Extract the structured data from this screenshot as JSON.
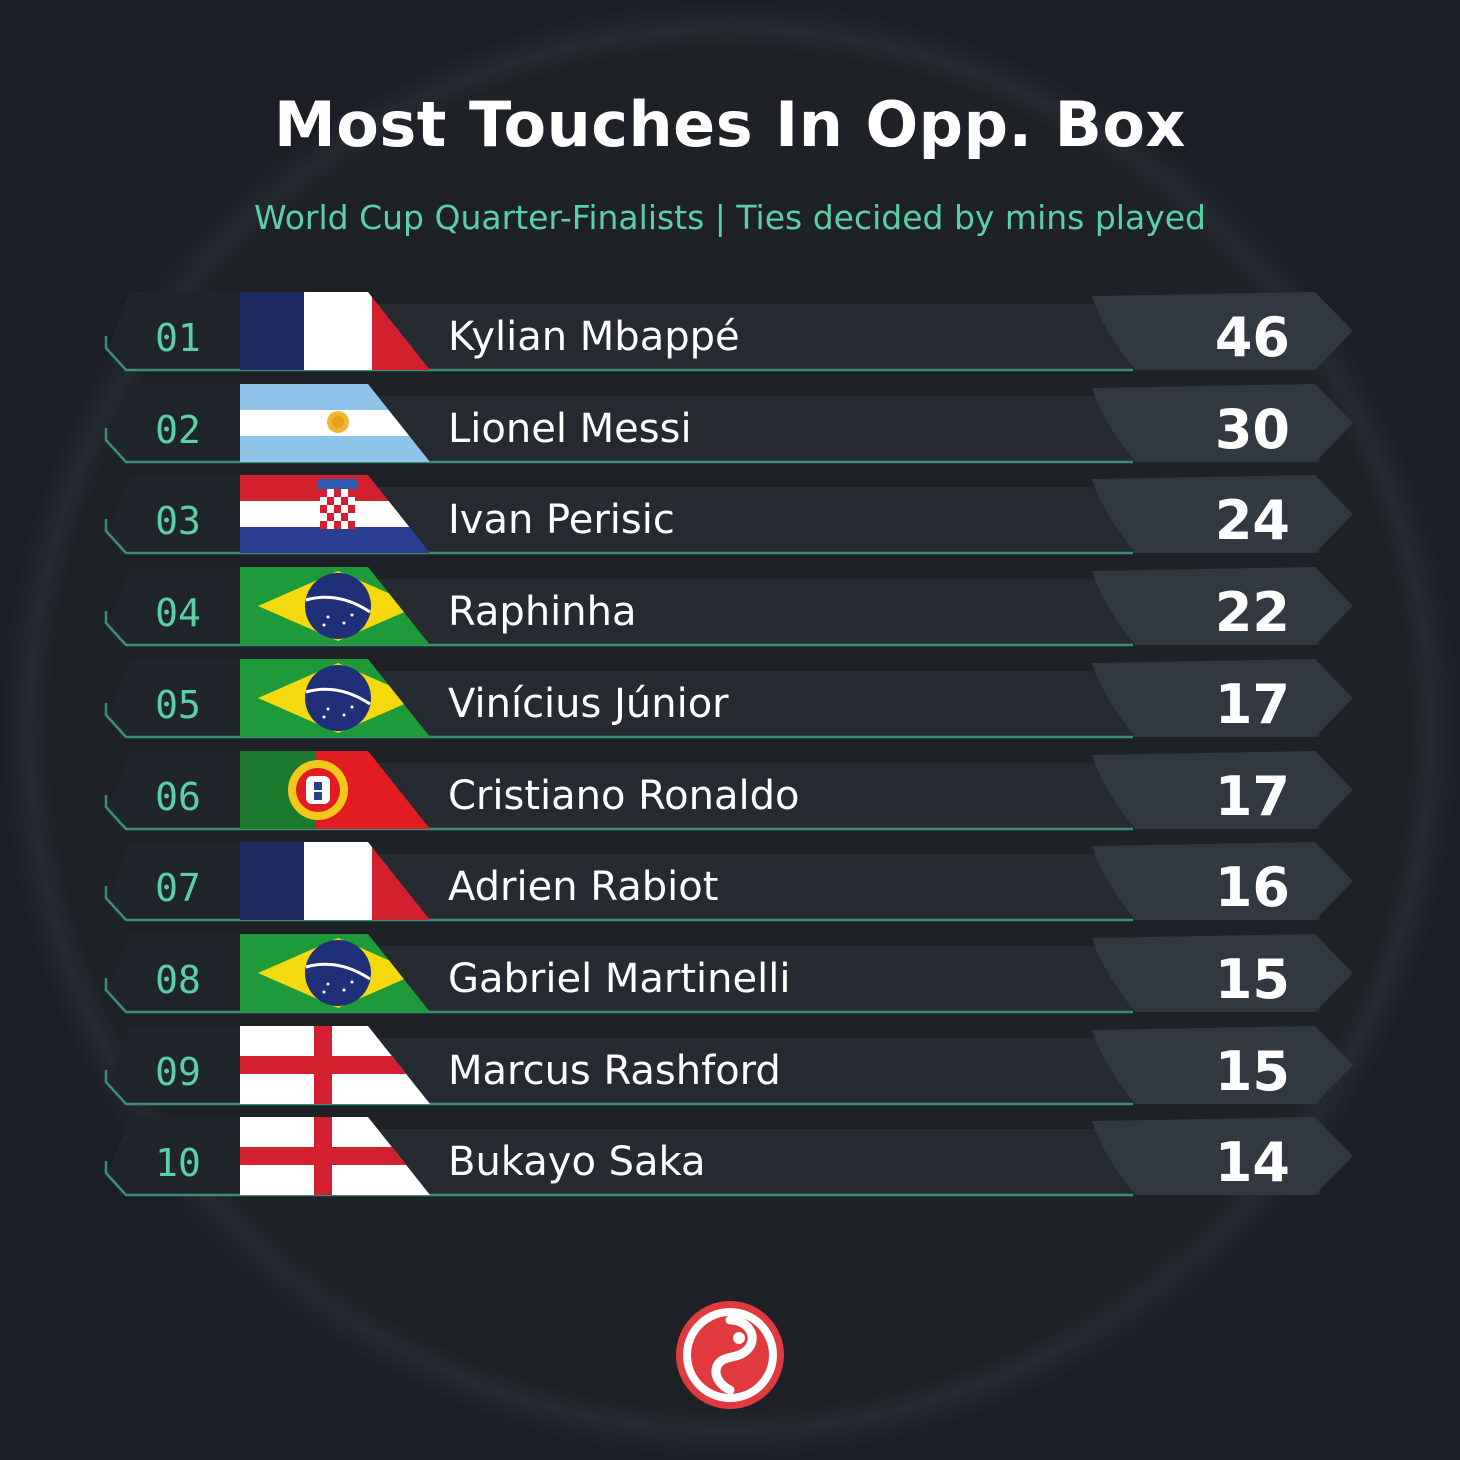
{
  "title": "Most Touches In Opp. Box",
  "subtitle": "World Cup Quarter-Finalists | Ties decided by mins played",
  "chart_data": {
    "type": "table",
    "columns": [
      "rank",
      "flag",
      "player",
      "touches"
    ],
    "rows": [
      {
        "rank": "01",
        "flag": "france-flag",
        "player": "Kylian Mbappé",
        "value": "46"
      },
      {
        "rank": "02",
        "flag": "argentina-flag",
        "player": "Lionel Messi",
        "value": "30"
      },
      {
        "rank": "03",
        "flag": "croatia-flag",
        "player": "Ivan Perisic",
        "value": "24"
      },
      {
        "rank": "04",
        "flag": "brazil-flag",
        "player": "Raphinha",
        "value": "22"
      },
      {
        "rank": "05",
        "flag": "brazil-flag",
        "player": "Vinícius Júnior",
        "value": "17"
      },
      {
        "rank": "06",
        "flag": "portugal-flag",
        "player": "Cristiano Ronaldo",
        "value": "17"
      },
      {
        "rank": "07",
        "flag": "france-flag",
        "player": "Adrien Rabiot",
        "value": "16"
      },
      {
        "rank": "08",
        "flag": "brazil-flag",
        "player": "Gabriel Martinelli",
        "value": "15"
      },
      {
        "rank": "09",
        "flag": "england-flag",
        "player": "Marcus Rashford",
        "value": "15"
      },
      {
        "rank": "10",
        "flag": "england-flag",
        "player": "Bukayo Saka",
        "value": "14"
      }
    ]
  },
  "colors": {
    "background": "#1e2227",
    "accent": "#5bd0a6",
    "text": "#ffffff",
    "logo": "#e03a3e"
  },
  "logo": {
    "icon": "brand-logo-icon"
  }
}
